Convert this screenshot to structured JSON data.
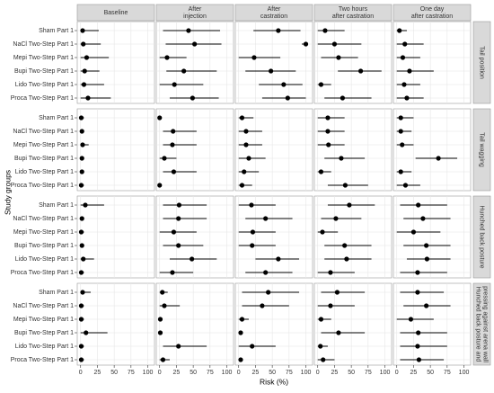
{
  "chart_data": {
    "type": "forest",
    "y_label": "Study groups",
    "x_label": "Risk (%)",
    "columns": [
      [
        "Baseline"
      ],
      [
        "After",
        "injection"
      ],
      [
        "After",
        "castration"
      ],
      [
        "Two hours",
        "after castration"
      ],
      [
        "One day",
        "after castration"
      ]
    ],
    "rows": [
      [
        "Tail position"
      ],
      [
        "Tail wagging"
      ],
      [
        "Hunched back posture"
      ],
      [
        "Hunched back posture and",
        "pressing against arena wall"
      ]
    ],
    "groups": [
      "Sham Part 1",
      "NaCl Two-Step Part 1",
      "Mepi Two-Step Part 1",
      "Bupi Two-Step Part 1",
      "Lido Two-Step Part 1",
      "Proca Two-Step Part 1"
    ],
    "xlim": [
      -5,
      110
    ],
    "xticks": [
      0,
      25,
      50,
      75,
      100
    ],
    "grid": true,
    "color": "#000000",
    "panels": [
      [
        {
          "values": [
            3,
            4,
            9,
            6,
            5,
            11
          ],
          "low": [
            0,
            0,
            0,
            0,
            0,
            0
          ],
          "high": [
            27,
            30,
            42,
            28,
            35,
            45
          ]
        },
        {
          "values": [
            43,
            52,
            11,
            36,
            22,
            49
          ],
          "low": [
            5,
            9,
            0,
            10,
            0,
            15
          ],
          "high": [
            90,
            92,
            40,
            85,
            65,
            88
          ]
        },
        {
          "values": [
            59,
            100,
            23,
            48,
            67,
            73
          ],
          "low": [
            22,
            94,
            0,
            10,
            30,
            35
          ],
          "high": [
            92,
            100,
            62,
            85,
            95,
            100
          ]
        },
        {
          "values": [
            11,
            25,
            31,
            64,
            5,
            37
          ],
          "low": [
            0,
            0,
            5,
            30,
            0,
            10
          ],
          "high": [
            40,
            65,
            60,
            95,
            20,
            80
          ]
        },
        {
          "values": [
            4,
            12,
            9,
            19,
            11,
            15
          ],
          "low": [
            0,
            0,
            0,
            0,
            0,
            0
          ],
          "high": [
            15,
            40,
            35,
            55,
            35,
            40
          ]
        }
      ],
      [
        {
          "values": [
            1,
            2,
            3,
            2,
            2,
            1
          ],
          "low": [
            0,
            0,
            0,
            0,
            0,
            0
          ],
          "high": [
            5,
            5,
            12,
            5,
            5,
            5
          ]
        },
        {
          "values": [
            0,
            20,
            19,
            7,
            21,
            0
          ],
          "low": [
            0,
            5,
            5,
            0,
            5,
            0
          ],
          "high": [
            0,
            55,
            55,
            25,
            55,
            0
          ]
        },
        {
          "values": [
            5,
            11,
            11,
            15,
            8,
            5
          ],
          "low": [
            0,
            0,
            0,
            0,
            0,
            0
          ],
          "high": [
            22,
            35,
            35,
            40,
            30,
            20
          ]
        },
        {
          "values": [
            15,
            15,
            16,
            35,
            5,
            41
          ],
          "low": [
            0,
            0,
            0,
            10,
            0,
            15
          ],
          "high": [
            40,
            40,
            40,
            70,
            20,
            75
          ]
        },
        {
          "values": [
            6,
            6,
            8,
            62,
            6,
            13
          ],
          "low": [
            0,
            0,
            0,
            28,
            0,
            0
          ],
          "high": [
            25,
            22,
            25,
            90,
            22,
            35
          ]
        }
      ],
      [
        {
          "values": [
            7,
            2,
            1,
            2,
            4,
            1
          ],
          "low": [
            0,
            0,
            0,
            0,
            0,
            0
          ],
          "high": [
            35,
            5,
            5,
            5,
            20,
            5
          ]
        },
        {
          "values": [
            29,
            28,
            21,
            28,
            48,
            19
          ],
          "low": [
            5,
            5,
            0,
            5,
            15,
            0
          ],
          "high": [
            70,
            70,
            55,
            65,
            85,
            50
          ]
        },
        {
          "values": [
            19,
            40,
            21,
            20,
            59,
            40
          ],
          "low": [
            0,
            10,
            0,
            0,
            25,
            10
          ],
          "high": [
            55,
            80,
            55,
            55,
            90,
            80
          ]
        },
        {
          "values": [
            47,
            27,
            7,
            40,
            43,
            19
          ],
          "low": [
            15,
            5,
            0,
            10,
            10,
            0
          ],
          "high": [
            85,
            65,
            30,
            80,
            80,
            55
          ]
        },
        {
          "values": [
            32,
            39,
            25,
            44,
            45,
            31
          ],
          "low": [
            5,
            10,
            0,
            10,
            15,
            5
          ],
          "high": [
            75,
            80,
            65,
            80,
            80,
            75
          ]
        }
      ],
      [
        {
          "values": [
            3,
            1,
            1,
            8,
            1,
            1
          ],
          "low": [
            0,
            0,
            0,
            0,
            0,
            0
          ],
          "high": [
            15,
            5,
            5,
            40,
            5,
            5
          ]
        },
        {
          "values": [
            4,
            7,
            1,
            1,
            28,
            5
          ],
          "low": [
            0,
            0,
            0,
            0,
            5,
            0
          ],
          "high": [
            12,
            30,
            3,
            3,
            70,
            15
          ]
        },
        {
          "values": [
            44,
            35,
            5,
            3,
            20,
            3
          ],
          "low": [
            5,
            5,
            0,
            0,
            0,
            0
          ],
          "high": [
            90,
            75,
            15,
            5,
            55,
            5
          ]
        },
        {
          "values": [
            29,
            19,
            5,
            31,
            4,
            8
          ],
          "low": [
            5,
            0,
            0,
            5,
            0,
            0
          ],
          "high": [
            70,
            55,
            20,
            70,
            15,
            25
          ]
        },
        {
          "values": [
            31,
            44,
            21,
            32,
            31,
            33
          ],
          "low": [
            5,
            10,
            0,
            5,
            5,
            5
          ],
          "high": [
            70,
            80,
            55,
            75,
            75,
            70
          ]
        }
      ]
    ]
  }
}
